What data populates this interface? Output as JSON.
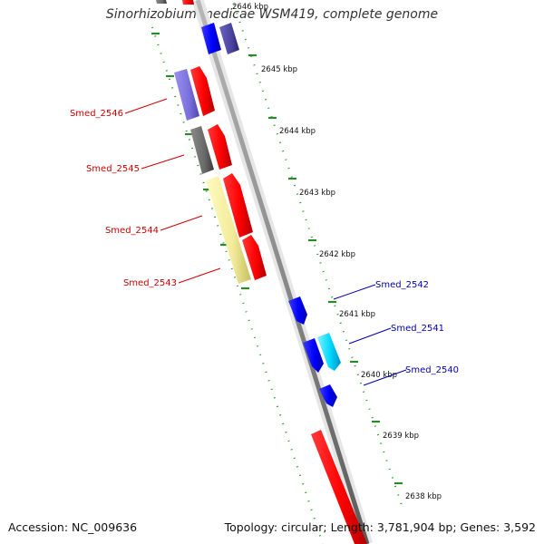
{
  "title": "Sinorhizobium medicae WSM419, complete genome",
  "accession": "Accession: NC_009636",
  "summary": "Topology: circular; Length: 3,781,904 bp; Genes: 3,592",
  "scale_labels": [
    "2646 kbp",
    "2645 kbp",
    "2644 kbp",
    "2643 kbp",
    "2642 kbp",
    "2641 kbp",
    "2640 kbp",
    "2639 kbp",
    "2638 kbp"
  ],
  "genes_forward": [
    {
      "label": "Smed_2546",
      "color": "#cc0000"
    },
    {
      "label": "Smed_2545",
      "color": "#cc0000"
    },
    {
      "label": "Smed_2544",
      "color": "#cc0000"
    },
    {
      "label": "Smed_2543",
      "color": "#cc0000"
    }
  ],
  "genes_reverse": [
    {
      "label": "Smed_2542",
      "color": "#0000aa"
    },
    {
      "label": "Smed_2541",
      "color": "#0000aa"
    },
    {
      "label": "Smed_2540",
      "color": "#0000aa"
    }
  ]
}
